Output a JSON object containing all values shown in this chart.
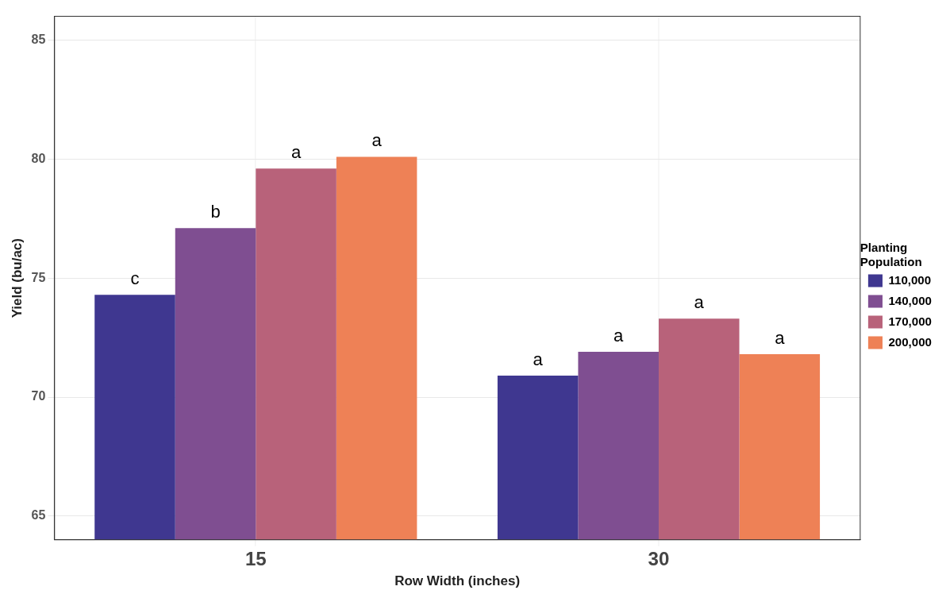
{
  "chart_data": {
    "type": "bar",
    "xlabel": "Row Width (inches)",
    "ylabel": "Yield (bu/ac)",
    "legend_title": "Planting Population",
    "categories": [
      "15",
      "30"
    ],
    "series": [
      {
        "name": "110,000",
        "color": "#3f3790",
        "values": [
          74.3,
          70.9
        ],
        "value_labels": [
          "c",
          "a"
        ]
      },
      {
        "name": "140,000",
        "color": "#7f4e91",
        "values": [
          77.1,
          71.9
        ],
        "value_labels": [
          "b",
          "a"
        ]
      },
      {
        "name": "170,000",
        "color": "#b8627a",
        "values": [
          79.6,
          73.3
        ],
        "value_labels": [
          "a",
          "a"
        ]
      },
      {
        "name": "200,000",
        "color": "#ee8156",
        "values": [
          80.1,
          71.8
        ],
        "value_labels": [
          "a",
          "a"
        ]
      }
    ],
    "ylim": [
      64,
      86
    ],
    "yticks": [
      65,
      70,
      75,
      80,
      85
    ],
    "grid": true,
    "legend": "right"
  }
}
